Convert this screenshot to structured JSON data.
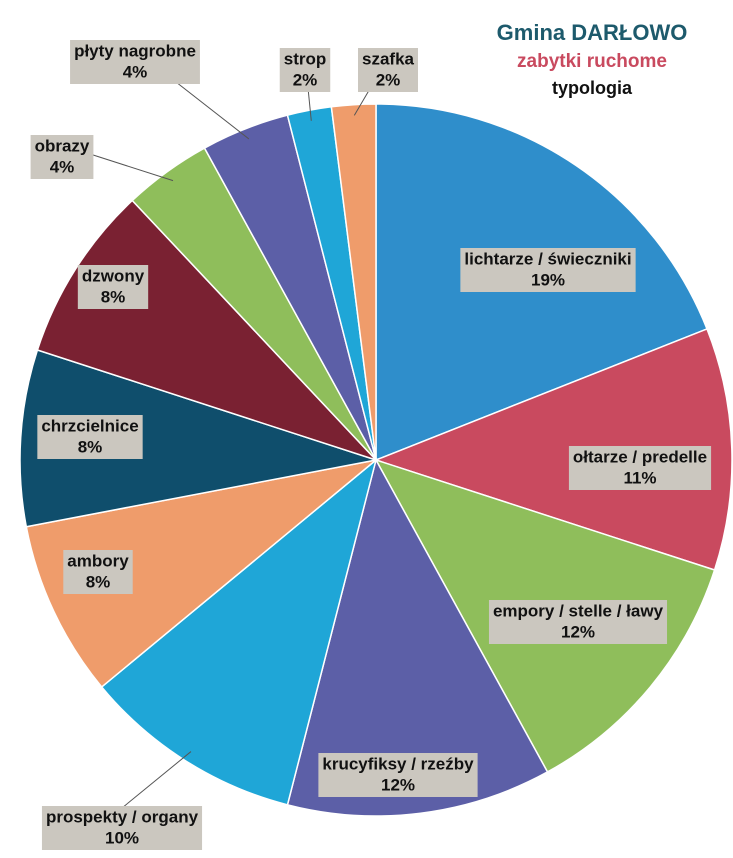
{
  "chart_data": {
    "type": "pie",
    "title": "Gmina DARŁOWO",
    "subtitle": "zabytki ruchome",
    "caption": "typologia",
    "categories": [
      "lichtarze / świeczniki",
      "ołtarze / predelle",
      "empory / stelle / ławy",
      "krucyfiksy / rzeźby",
      "prospekty / organy",
      "ambory",
      "chrzcielnice",
      "dzwony",
      "obrazy",
      "płyty nagrobne",
      "strop",
      "szafka"
    ],
    "values": [
      19,
      11,
      12,
      12,
      10,
      8,
      8,
      8,
      4,
      4,
      2,
      2
    ],
    "value_labels": [
      "19%",
      "11%",
      "12%",
      "12%",
      "10%",
      "8%",
      "8%",
      "8%",
      "4%",
      "4%",
      "2%",
      "2%"
    ],
    "colors": [
      "#2f8ecb",
      "#c94a5f",
      "#8fbe5b",
      "#5c5fa7",
      "#1fa6d7",
      "#ef9c6b",
      "#0f4e6c",
      "#7a2132",
      "#8fbe5b",
      "#5c5fa7",
      "#1fa6d7",
      "#ef9c6b"
    ]
  }
}
